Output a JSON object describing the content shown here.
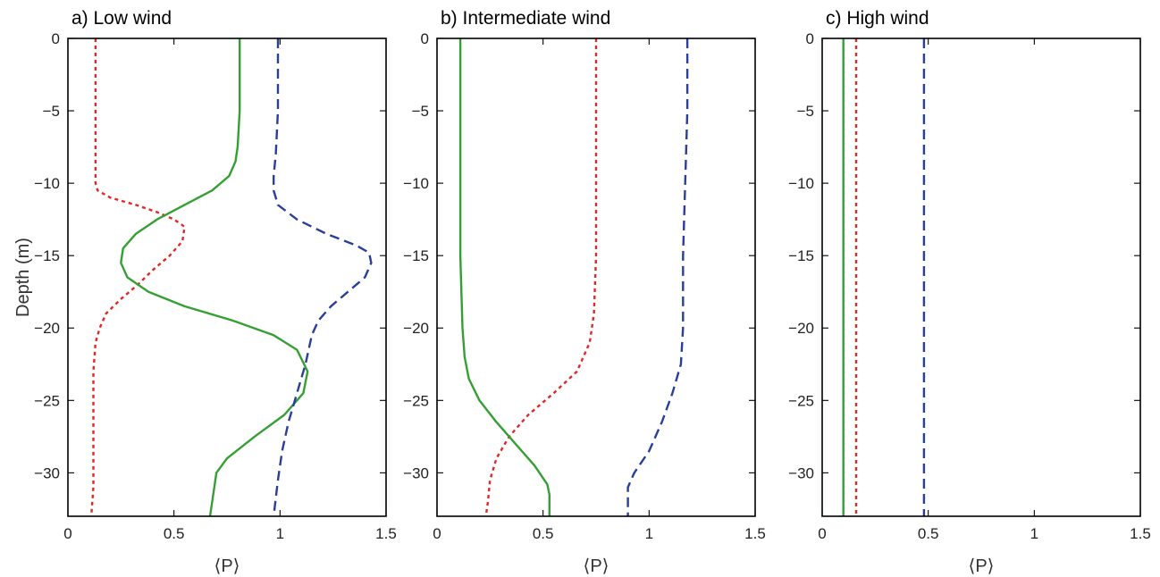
{
  "chart_data": [
    {
      "type": "line",
      "title": "a) Low wind",
      "xlabel": "⟨P⟩",
      "ylabel": "Depth (m)",
      "xlim": [
        0,
        1.5
      ],
      "ylim": [
        -33,
        0
      ],
      "xticks": [
        0,
        0.5,
        1,
        1.5
      ],
      "xtick_labels": [
        "0",
        "0.5",
        "1",
        "1.5"
      ],
      "yticks": [
        0,
        -5,
        -10,
        -15,
        -20,
        -25,
        -30
      ],
      "ytick_labels": [
        "0",
        "−5",
        "−10",
        "−15",
        "−20",
        "−25",
        "−30"
      ],
      "series": [
        {
          "color": "#e32626",
          "style": "dotted",
          "x": [
            0.13,
            0.13,
            0.13,
            0.13,
            0.14,
            0.2,
            0.32,
            0.42,
            0.5,
            0.55,
            0.54,
            0.48,
            0.4,
            0.33,
            0.25,
            0.18,
            0.15,
            0.13,
            0.12,
            0.12,
            0.12,
            0.12,
            0.11
          ],
          "y": [
            0,
            -5,
            -9,
            -10,
            -10.5,
            -11,
            -11.5,
            -12,
            -12.5,
            -13,
            -14,
            -15,
            -16,
            -17,
            -18,
            -19,
            -20,
            -21,
            -23,
            -25,
            -28,
            -31,
            -33
          ]
        },
        {
          "color": "#34a034",
          "style": "solid",
          "x": [
            0.81,
            0.81,
            0.8,
            0.79,
            0.76,
            0.68,
            0.55,
            0.42,
            0.32,
            0.26,
            0.25,
            0.28,
            0.38,
            0.55,
            0.78,
            0.97,
            1.08,
            1.13,
            1.11,
            1.02,
            0.88,
            0.75,
            0.7,
            0.69,
            0.68,
            0.67
          ],
          "y": [
            0,
            -5,
            -7.5,
            -8.5,
            -9.5,
            -10.5,
            -11.5,
            -12.5,
            -13.5,
            -14.5,
            -15.5,
            -16.5,
            -17.5,
            -18.5,
            -19.5,
            -20.5,
            -21.5,
            -23,
            -24.5,
            -26,
            -27.5,
            -29,
            -30,
            -31,
            -32,
            -33
          ]
        },
        {
          "color": "#2a3f9a",
          "style": "dashed",
          "x": [
            0.99,
            0.99,
            0.98,
            0.97,
            0.97,
            0.99,
            1.08,
            1.22,
            1.36,
            1.42,
            1.43,
            1.4,
            1.32,
            1.24,
            1.18,
            1.15,
            1.12,
            1.08,
            1.04,
            1.01,
            0.99,
            0.97
          ],
          "y": [
            0,
            -5,
            -8,
            -9.5,
            -10.5,
            -11.5,
            -12.5,
            -13.5,
            -14.3,
            -14.8,
            -15.5,
            -16.5,
            -17.5,
            -18.5,
            -19.5,
            -20.5,
            -22.5,
            -24.5,
            -26.5,
            -28.5,
            -30.5,
            -33
          ]
        }
      ]
    },
    {
      "type": "line",
      "title": "b) Intermediate wind",
      "xlabel": "⟨P⟩",
      "ylabel": "",
      "xlim": [
        0,
        1.5
      ],
      "ylim": [
        -33,
        0
      ],
      "xticks": [
        0,
        0.5,
        1,
        1.5
      ],
      "xtick_labels": [
        "0",
        "0.5",
        "1",
        "1.5"
      ],
      "yticks": [
        0,
        -5,
        -10,
        -15,
        -20,
        -25,
        -30
      ],
      "ytick_labels": [
        "0",
        "−5",
        "−10",
        "−15",
        "−20",
        "−25",
        "−30"
      ],
      "series": [
        {
          "color": "#e32626",
          "style": "dotted",
          "x": [
            0.75,
            0.75,
            0.75,
            0.75,
            0.74,
            0.72,
            0.66,
            0.55,
            0.43,
            0.34,
            0.28,
            0.25,
            0.24,
            0.23
          ],
          "y": [
            0,
            -5,
            -10,
            -15,
            -19,
            -21,
            -23,
            -24.5,
            -26,
            -27.5,
            -29,
            -30.5,
            -32,
            -33
          ]
        },
        {
          "color": "#34a034",
          "style": "solid",
          "x": [
            0.11,
            0.11,
            0.11,
            0.11,
            0.12,
            0.13,
            0.15,
            0.2,
            0.28,
            0.37,
            0.46,
            0.52,
            0.53,
            0.53
          ],
          "y": [
            0,
            -5,
            -10,
            -15,
            -20,
            -22,
            -23.5,
            -25,
            -26.5,
            -28,
            -29.5,
            -30.8,
            -31.5,
            -33
          ]
        },
        {
          "color": "#2a3f9a",
          "style": "dashed",
          "x": [
            1.18,
            1.18,
            1.17,
            1.16,
            1.16,
            1.15,
            1.11,
            1.06,
            1.0,
            0.93,
            0.9,
            0.9
          ],
          "y": [
            0,
            -5,
            -10,
            -15,
            -20,
            -22.5,
            -24.5,
            -26.5,
            -28.5,
            -30,
            -31,
            -33
          ]
        }
      ]
    },
    {
      "type": "line",
      "title": "c) High wind",
      "xlabel": "⟨P⟩",
      "ylabel": "",
      "xlim": [
        0,
        1.5
      ],
      "ylim": [
        -33,
        0
      ],
      "xticks": [
        0,
        0.5,
        1,
        1.5
      ],
      "xtick_labels": [
        "0",
        "0.5",
        "1",
        "1.5"
      ],
      "yticks": [
        0,
        -5,
        -10,
        -15,
        -20,
        -25,
        -30
      ],
      "ytick_labels": [
        "0",
        "−5",
        "−10",
        "−15",
        "−20",
        "−25",
        "−30"
      ],
      "series": [
        {
          "color": "#e32626",
          "style": "dotted",
          "x": [
            0.16,
            0.16
          ],
          "y": [
            0,
            -33
          ]
        },
        {
          "color": "#34a034",
          "style": "solid",
          "x": [
            0.1,
            0.1
          ],
          "y": [
            0,
            -33
          ]
        },
        {
          "color": "#2a3f9a",
          "style": "dashed",
          "x": [
            0.48,
            0.48
          ],
          "y": [
            0,
            -33
          ]
        }
      ]
    }
  ]
}
